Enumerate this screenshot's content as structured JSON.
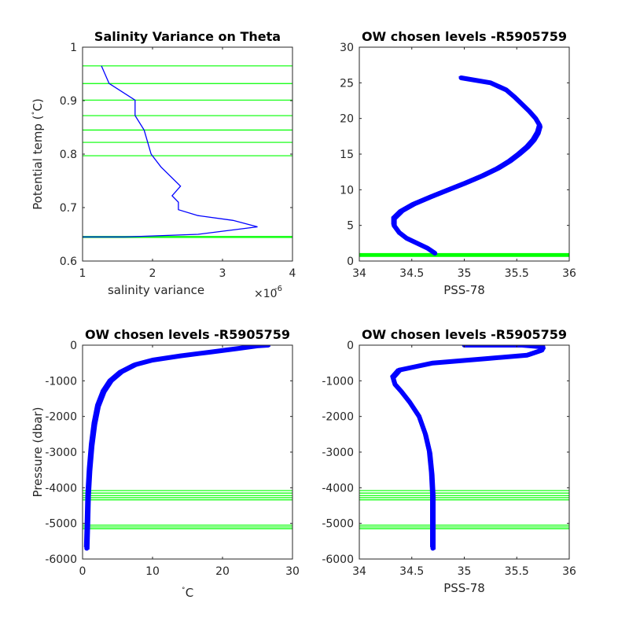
{
  "chart_data": [
    {
      "type": "line",
      "title": "Salinity Variance on Theta",
      "xlabel": "salinity variance",
      "x_exponent_label": "×10",
      "x_exponent_power": "-6",
      "ylabel": "Potential temp (",
      "ylabel_unit": "C)",
      "degree_mark": "˚",
      "xlim": [
        1,
        4
      ],
      "ylim": [
        0.6,
        1
      ],
      "x_ticks": [
        "1",
        "2",
        "3",
        "4"
      ],
      "y_ticks": [
        "0.6",
        "0.7",
        "0.8",
        "0.9",
        "1"
      ],
      "grid": false,
      "series": [
        {
          "color": "#0000ff",
          "points": [
            [
              1.27,
              0.965
            ],
            [
              1.38,
              0.932
            ],
            [
              1.75,
              0.901
            ],
            [
              1.75,
              0.872
            ],
            [
              1.88,
              0.845
            ],
            [
              1.98,
              0.8
            ],
            [
              2.12,
              0.776
            ],
            [
              2.4,
              0.74
            ],
            [
              2.28,
              0.722
            ],
            [
              2.37,
              0.71
            ],
            [
              2.37,
              0.696
            ],
            [
              2.65,
              0.685
            ],
            [
              3.15,
              0.676
            ],
            [
              3.5,
              0.664
            ],
            [
              2.65,
              0.65
            ],
            [
              1.6,
              0.645
            ],
            [
              1.0,
              0.645
            ]
          ]
        }
      ],
      "hlines": [
        0.965,
        0.932,
        0.901,
        0.872,
        0.845,
        0.822,
        0.797,
        0.646,
        0.644
      ],
      "hline_color": "#00ff00"
    },
    {
      "type": "line",
      "title": "OW chosen levels -R5905759",
      "xlabel": "PSS-78",
      "ylabel": "",
      "xlim": [
        34,
        36
      ],
      "ylim": [
        0,
        30
      ],
      "x_ticks": [
        "34",
        "34.5",
        "35",
        "35.5",
        "36"
      ],
      "y_ticks": [
        "0",
        "5",
        "10",
        "15",
        "20",
        "25",
        "30"
      ],
      "grid": false,
      "series": [
        {
          "color": "#0000ff",
          "points": [
            [
              34.72,
              1.1
            ],
            [
              34.65,
              1.8
            ],
            [
              34.55,
              2.5
            ],
            [
              34.45,
              3.2
            ],
            [
              34.38,
              4.0
            ],
            [
              34.33,
              5.0
            ],
            [
              34.33,
              6.0
            ],
            [
              34.4,
              7.0
            ],
            [
              34.52,
              8.0
            ],
            [
              34.68,
              9.0
            ],
            [
              34.85,
              10.0
            ],
            [
              35.02,
              11.0
            ],
            [
              35.18,
              12.0
            ],
            [
              35.32,
              13.0
            ],
            [
              35.43,
              14.0
            ],
            [
              35.52,
              15.0
            ],
            [
              35.6,
              16.0
            ],
            [
              35.66,
              17.0
            ],
            [
              35.7,
              18.0
            ],
            [
              35.72,
              19.0
            ],
            [
              35.68,
              20.0
            ],
            [
              35.62,
              21.0
            ],
            [
              35.55,
              22.0
            ],
            [
              35.48,
              23.0
            ],
            [
              35.4,
              24.0
            ],
            [
              35.25,
              25.0
            ],
            [
              34.97,
              25.7
            ]
          ]
        }
      ],
      "hlines": [
        0.65,
        0.75,
        0.85,
        0.95,
        1.05
      ],
      "hline_color": "#00ff00"
    },
    {
      "type": "line",
      "title": "OW chosen levels -R5905759",
      "xlabel": "C",
      "degree_mark": "˚",
      "ylabel": "Pressure (dbar)",
      "xlim": [
        0,
        30
      ],
      "ylim": [
        -6000,
        0
      ],
      "x_ticks": [
        "0",
        "10",
        "20",
        "30"
      ],
      "y_ticks": [
        "-6000",
        "-5000",
        "-4000",
        "-3000",
        "-2000",
        "-1000",
        "0"
      ],
      "grid": false,
      "series": [
        {
          "color": "#0000ff",
          "points": [
            [
              0.6,
              -5700
            ],
            [
              0.7,
              -5000
            ],
            [
              0.8,
              -4200
            ],
            [
              1.0,
              -3500
            ],
            [
              1.3,
              -2800
            ],
            [
              1.7,
              -2200
            ],
            [
              2.2,
              -1700
            ],
            [
              3.0,
              -1300
            ],
            [
              4.0,
              -1000
            ],
            [
              5.5,
              -750
            ],
            [
              7.5,
              -550
            ],
            [
              10.0,
              -420
            ],
            [
              14.0,
              -300
            ],
            [
              18.0,
              -200
            ],
            [
              22.0,
              -100
            ],
            [
              25.0,
              -20
            ],
            [
              26.5,
              0
            ]
          ]
        }
      ],
      "hlines": [
        -4080,
        -4150,
        -4220,
        -4280,
        -4340,
        -5050,
        -5100,
        -5150
      ],
      "hline_color": "#00ff00"
    },
    {
      "type": "line",
      "title": "OW chosen levels -R5905759",
      "xlabel": "PSS-78",
      "ylabel": "",
      "xlim": [
        34,
        36
      ],
      "ylim": [
        -6000,
        0
      ],
      "x_ticks": [
        "34",
        "34.5",
        "35",
        "35.5",
        "36"
      ],
      "y_ticks": [
        "-6000",
        "-5000",
        "-4000",
        "-3000",
        "-2000",
        "-1000",
        "0"
      ],
      "grid": false,
      "series": [
        {
          "color": "#0000ff",
          "points": [
            [
              34.7,
              -5700
            ],
            [
              34.7,
              -4200
            ],
            [
              34.69,
              -3600
            ],
            [
              34.67,
              -3000
            ],
            [
              34.63,
              -2500
            ],
            [
              34.57,
              -2000
            ],
            [
              34.48,
              -1600
            ],
            [
              34.4,
              -1300
            ],
            [
              34.34,
              -1100
            ],
            [
              34.32,
              -900
            ],
            [
              34.38,
              -700
            ],
            [
              34.7,
              -500
            ],
            [
              35.2,
              -380
            ],
            [
              35.6,
              -280
            ],
            [
              35.73,
              -150
            ],
            [
              35.75,
              -50
            ],
            [
              35.55,
              0
            ],
            [
              35.0,
              0
            ]
          ]
        }
      ],
      "hlines": [
        -4080,
        -4150,
        -4220,
        -4280,
        -4340,
        -5050,
        -5100,
        -5150
      ],
      "hline_color": "#00ff00"
    }
  ]
}
